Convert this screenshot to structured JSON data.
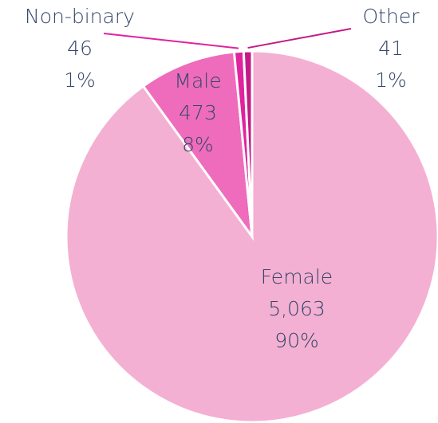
{
  "chart_data": {
    "type": "pie",
    "categories": [
      "Female",
      "Male",
      "Non-binary",
      "Other"
    ],
    "values": [
      5063,
      473,
      46,
      41
    ],
    "value_labels": [
      "5,063",
      "473",
      "46",
      "41"
    ],
    "percent_labels": [
      "90%",
      "8%",
      "1%",
      "1%"
    ],
    "colors": [
      "#f4b0d2",
      "#ee6cbb",
      "#e0239f",
      "#c41a86"
    ],
    "start_angle": 0,
    "direction": "clockwise"
  }
}
